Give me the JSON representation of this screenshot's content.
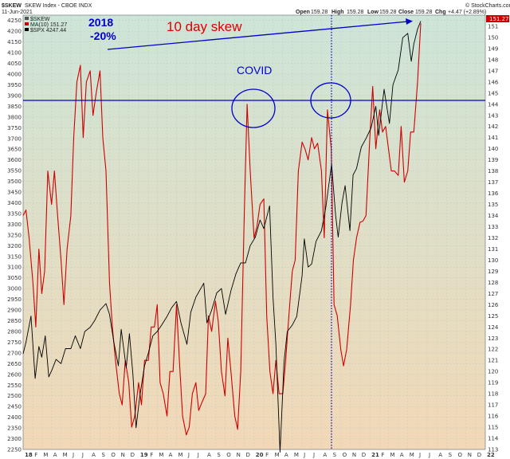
{
  "header": {
    "symbol": "$SKEW",
    "name": "SKEW Index - CBOE INDX",
    "date": "11-Jun-2021",
    "open_label": "Open",
    "open": "159.28",
    "high_label": "High",
    "high": "159.28",
    "low_label": "Low",
    "low": "159.28",
    "close_label": "Close",
    "close": "159.28",
    "chg_label": "Chg",
    "chg": "+4.47 (+2.89%)",
    "watermark": "© StockCharts.com"
  },
  "legend": [
    {
      "text": "$SKEW",
      "color": "#555555"
    },
    {
      "text": "MA(10) 151.27",
      "color": "#cc0000"
    },
    {
      "text": "$SPX 4247.44",
      "color": "#000000"
    }
  ],
  "annotations": {
    "label_2018_line1": "2018",
    "label_2018_line2": "-20%",
    "skew_label": "10 day skew",
    "covid_label": "COVID",
    "price_tag": "151.27"
  },
  "colors": {
    "skew_ma": "#d00000",
    "spx": "#000000",
    "annotation_blue": "#0000cc",
    "skew_label": "#e00000",
    "bg_top": "#cde5d8",
    "bg_bottom": "#f2d8b6"
  },
  "chart_data": {
    "type": "line",
    "x_axis": {
      "range": [
        "2018-01-01",
        "2022-01-01"
      ],
      "month_ticks": [
        "18",
        "F",
        "M",
        "A",
        "M",
        "J",
        "J",
        "A",
        "S",
        "O",
        "N",
        "D",
        "19",
        "F",
        "M",
        "A",
        "M",
        "J",
        "J",
        "A",
        "S",
        "O",
        "N",
        "D",
        "20",
        "F",
        "M",
        "A",
        "M",
        "J",
        "J",
        "A",
        "S",
        "O",
        "N",
        "D",
        "21",
        "F",
        "M",
        "A",
        "M",
        "J",
        "J",
        "A",
        "S",
        "O",
        "N",
        "D",
        "22"
      ]
    },
    "left_axis": {
      "label": "",
      "range": [
        2250,
        4275
      ],
      "ticks": [
        2250,
        2300,
        2350,
        2400,
        2450,
        2500,
        2550,
        2600,
        2650,
        2700,
        2750,
        2800,
        2850,
        2900,
        2950,
        3000,
        3050,
        3100,
        3150,
        3200,
        3250,
        3300,
        3350,
        3400,
        3450,
        3500,
        3550,
        3600,
        3650,
        3700,
        3750,
        3800,
        3850,
        3900,
        3950,
        4000,
        4050,
        4100,
        4150,
        4200,
        4250
      ]
    },
    "right_axis": {
      "label": "",
      "range": [
        113,
        152
      ],
      "ticks": [
        113,
        114,
        115,
        116,
        117,
        118,
        119,
        120,
        121,
        122,
        123,
        124,
        125,
        126,
        127,
        128,
        129,
        130,
        131,
        132,
        133,
        134,
        135,
        136,
        137,
        138,
        139,
        140,
        141,
        142,
        143,
        144,
        145,
        146,
        147,
        148,
        149,
        150,
        151
      ]
    },
    "grid": true,
    "series": [
      {
        "name": "MA(10) 151.27",
        "axis": "right",
        "color": "#d00000",
        "x": [
          "2018-01-01",
          "2018-01-10",
          "2018-01-20",
          "2018-02-01",
          "2018-02-10",
          "2018-02-20",
          "2018-03-01",
          "2018-03-10",
          "2018-03-20",
          "2018-04-01",
          "2018-04-10",
          "2018-04-20",
          "2018-05-01",
          "2018-05-10",
          "2018-05-20",
          "2018-06-01",
          "2018-06-10",
          "2018-06-20",
          "2018-07-01",
          "2018-07-10",
          "2018-07-20",
          "2018-08-01",
          "2018-08-10",
          "2018-08-20",
          "2018-09-01",
          "2018-09-10",
          "2018-09-20",
          "2018-10-01",
          "2018-10-10",
          "2018-10-20",
          "2018-11-01",
          "2018-11-10",
          "2018-11-20",
          "2018-12-01",
          "2018-12-10",
          "2018-12-20",
          "2019-01-01",
          "2019-01-10",
          "2019-01-20",
          "2019-02-01",
          "2019-02-10",
          "2019-02-20",
          "2019-03-01",
          "2019-03-10",
          "2019-03-20",
          "2019-04-01",
          "2019-04-10",
          "2019-04-20",
          "2019-05-01",
          "2019-05-10",
          "2019-05-20",
          "2019-06-01",
          "2019-06-10",
          "2019-06-20",
          "2019-07-01",
          "2019-07-10",
          "2019-07-20",
          "2019-08-01",
          "2019-08-10",
          "2019-08-20",
          "2019-09-01",
          "2019-09-10",
          "2019-09-20",
          "2019-10-01",
          "2019-10-10",
          "2019-10-20",
          "2019-11-01",
          "2019-11-10",
          "2019-11-20",
          "2019-12-01",
          "2019-12-10",
          "2019-12-20",
          "2020-01-01",
          "2020-01-10",
          "2020-01-20",
          "2020-02-01",
          "2020-02-10",
          "2020-02-20",
          "2020-03-01",
          "2020-03-10",
          "2020-03-20",
          "2020-04-01",
          "2020-04-10",
          "2020-04-20",
          "2020-05-01",
          "2020-05-10",
          "2020-05-20",
          "2020-06-01",
          "2020-06-10",
          "2020-06-20",
          "2020-07-01",
          "2020-07-10",
          "2020-07-20",
          "2020-08-01",
          "2020-08-10",
          "2020-08-20",
          "2020-09-01",
          "2020-09-10",
          "2020-09-20",
          "2020-10-01",
          "2020-10-10",
          "2020-10-20",
          "2020-11-01",
          "2020-11-10",
          "2020-11-20",
          "2020-12-01",
          "2020-12-10",
          "2020-12-20",
          "2021-01-01",
          "2021-01-10",
          "2021-01-20",
          "2021-02-01",
          "2021-02-10",
          "2021-02-20",
          "2021-03-01",
          "2021-03-10",
          "2021-03-20",
          "2021-04-01",
          "2021-04-10",
          "2021-04-20",
          "2021-05-01",
          "2021-05-10",
          "2021-05-20",
          "2021-06-01",
          "2021-06-11"
        ],
        "y": [
          134,
          134.5,
          132,
          128,
          124,
          131,
          127,
          129,
          138,
          135,
          138,
          134,
          130,
          126,
          131,
          134,
          141,
          146,
          147.5,
          141,
          146,
          147,
          143,
          145,
          147,
          141,
          138,
          128,
          124,
          121,
          118,
          117,
          121,
          119,
          115,
          116,
          119,
          117,
          121,
          121,
          124,
          124,
          126,
          119,
          118,
          116,
          120,
          120,
          126,
          121,
          116,
          114.3,
          115,
          118,
          119,
          116.5,
          117.2,
          118,
          125,
          123.6,
          126.3,
          124.5,
          120,
          117.8,
          123,
          120,
          116,
          114.8,
          120,
          134,
          144,
          138,
          132,
          133,
          135,
          135.5,
          125,
          120,
          118,
          121,
          118,
          118,
          121,
          125,
          129,
          130,
          138,
          140.6,
          140,
          139,
          141,
          140,
          140.5,
          138,
          132,
          143.5,
          140,
          126,
          125,
          122,
          120.5,
          122,
          126,
          130,
          132,
          133.4,
          133.5,
          134,
          141,
          145.6,
          140,
          143.5,
          141.5,
          142,
          140,
          138,
          138,
          137.6,
          142,
          137,
          138,
          141.5,
          141.5,
          146,
          151.27
        ]
      },
      {
        "name": "$SPX 4247.44",
        "axis": "left",
        "color": "#000000",
        "x": [
          "2018-01-01",
          "2018-01-10",
          "2018-01-26",
          "2018-02-08",
          "2018-02-20",
          "2018-03-01",
          "2018-03-12",
          "2018-03-23",
          "2018-04-02",
          "2018-04-15",
          "2018-05-01",
          "2018-05-15",
          "2018-06-01",
          "2018-06-15",
          "2018-07-01",
          "2018-07-15",
          "2018-08-01",
          "2018-08-15",
          "2018-09-01",
          "2018-09-20",
          "2018-10-01",
          "2018-10-15",
          "2018-10-29",
          "2018-11-07",
          "2018-11-23",
          "2018-12-03",
          "2018-12-14",
          "2018-12-24",
          "2019-01-05",
          "2019-01-20",
          "2019-02-01",
          "2019-02-15",
          "2019-03-01",
          "2019-03-15",
          "2019-04-01",
          "2019-04-15",
          "2019-05-01",
          "2019-05-15",
          "2019-06-03",
          "2019-06-15",
          "2019-07-01",
          "2019-07-26",
          "2019-08-05",
          "2019-08-20",
          "2019-09-05",
          "2019-09-20",
          "2019-10-03",
          "2019-10-20",
          "2019-11-05",
          "2019-11-20",
          "2019-12-05",
          "2019-12-20",
          "2020-01-05",
          "2020-01-20",
          "2020-02-01",
          "2020-02-19",
          "2020-03-01",
          "2020-03-10",
          "2020-03-23",
          "2020-04-05",
          "2020-04-15",
          "2020-05-01",
          "2020-05-15",
          "2020-06-01",
          "2020-06-08",
          "2020-06-20",
          "2020-07-01",
          "2020-07-15",
          "2020-08-01",
          "2020-08-15",
          "2020-09-02",
          "2020-09-15",
          "2020-09-23",
          "2020-10-05",
          "2020-10-15",
          "2020-10-30",
          "2020-11-09",
          "2020-11-20",
          "2020-12-05",
          "2020-12-20",
          "2021-01-05",
          "2021-01-20",
          "2021-01-29",
          "2021-02-15",
          "2021-03-04",
          "2021-03-15",
          "2021-04-01",
          "2021-04-15",
          "2021-05-01",
          "2021-05-12",
          "2021-05-20",
          "2021-06-01",
          "2021-06-11"
        ],
        "y": [
          2695,
          2750,
          2872,
          2581,
          2730,
          2680,
          2780,
          2588,
          2620,
          2670,
          2650,
          2720,
          2720,
          2780,
          2720,
          2800,
          2820,
          2850,
          2900,
          2930,
          2880,
          2750,
          2640,
          2810,
          2630,
          2790,
          2600,
          2351,
          2500,
          2640,
          2700,
          2780,
          2800,
          2830,
          2870,
          2910,
          2940,
          2840,
          2740,
          2890,
          2960,
          3025,
          2840,
          2900,
          2980,
          3000,
          2880,
          2990,
          3070,
          3120,
          3120,
          3200,
          3240,
          3320,
          3280,
          3386,
          2960,
          2740,
          2237,
          2660,
          2800,
          2830,
          2870,
          3060,
          3232,
          3100,
          3115,
          3220,
          3270,
          3380,
          3580,
          3340,
          3240,
          3400,
          3480,
          3270,
          3530,
          3560,
          3660,
          3700,
          3750,
          3850,
          3714,
          3930,
          3770,
          3950,
          4020,
          4170,
          4190,
          4060,
          4140,
          4210,
          4247
        ]
      }
    ]
  }
}
